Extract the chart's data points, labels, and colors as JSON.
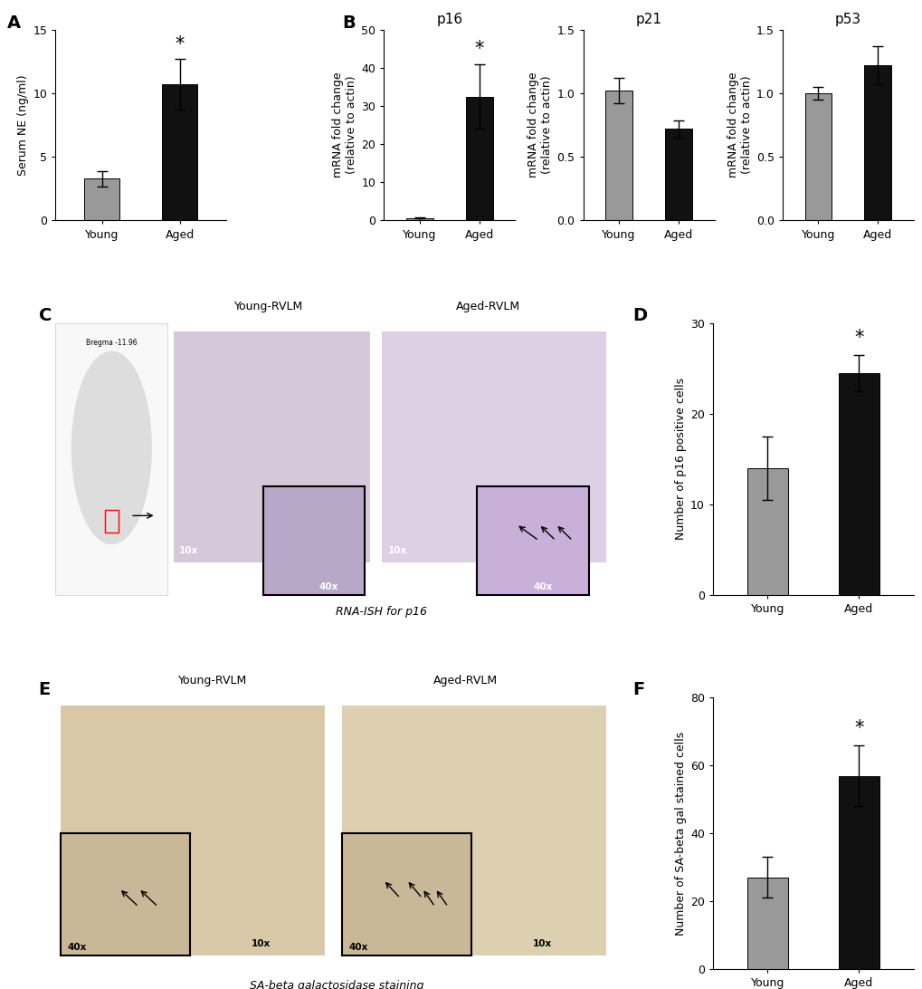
{
  "panel_A": {
    "ylabel": "Serum NE (ng/ml)",
    "categories": [
      "Young",
      "Aged"
    ],
    "values": [
      3.3,
      10.7
    ],
    "errors": [
      0.6,
      2.0
    ],
    "bar_colors": [
      "#999999",
      "#111111"
    ],
    "ylim": [
      0,
      15
    ],
    "yticks": [
      0,
      5,
      10,
      15
    ],
    "ytick_labels": [
      "0",
      "5",
      "10",
      "15"
    ],
    "sig_bar": 1,
    "label": "A"
  },
  "panel_B_p16": {
    "title": "p16",
    "ylabel": "mRNA fold change\n(relative to actin)",
    "categories": [
      "Young",
      "Aged"
    ],
    "values": [
      0.5,
      32.5
    ],
    "errors": [
      0.3,
      8.5
    ],
    "bar_colors": [
      "#999999",
      "#111111"
    ],
    "ylim": [
      0,
      50
    ],
    "yticks": [
      0,
      10,
      20,
      30,
      40,
      50
    ],
    "ytick_labels": [
      "0",
      "10",
      "20",
      "30",
      "40",
      "50"
    ],
    "sig_bar": 1,
    "label": "B"
  },
  "panel_B_p21": {
    "title": "p21",
    "ylabel": "mRNA fold change\n(relative to actin)",
    "categories": [
      "Young",
      "Aged"
    ],
    "values": [
      1.02,
      0.72
    ],
    "errors": [
      0.1,
      0.07
    ],
    "bar_colors": [
      "#999999",
      "#111111"
    ],
    "ylim": [
      0.0,
      1.5
    ],
    "yticks": [
      0.0,
      0.5,
      1.0,
      1.5
    ],
    "ytick_labels": [
      "0.0",
      "0.5",
      "1.0",
      "1.5"
    ],
    "sig_bar": null,
    "label": ""
  },
  "panel_B_p53": {
    "title": "p53",
    "ylabel": "mRNA fold change\n(relative to actin)",
    "categories": [
      "Young",
      "Aged"
    ],
    "values": [
      1.0,
      1.22
    ],
    "errors": [
      0.05,
      0.15
    ],
    "bar_colors": [
      "#999999",
      "#111111"
    ],
    "ylim": [
      0.0,
      1.5
    ],
    "yticks": [
      0.0,
      0.5,
      1.0,
      1.5
    ],
    "ytick_labels": [
      "0.0",
      "0.5",
      "1.0",
      "1.5"
    ],
    "sig_bar": null,
    "label": ""
  },
  "panel_D": {
    "ylabel": "Number of p16 positive cells",
    "categories": [
      "Young",
      "Aged"
    ],
    "values": [
      14.0,
      24.5
    ],
    "errors": [
      3.5,
      2.0
    ],
    "bar_colors": [
      "#999999",
      "#111111"
    ],
    "ylim": [
      0,
      30
    ],
    "yticks": [
      0,
      10,
      20,
      30
    ],
    "ytick_labels": [
      "0",
      "10",
      "20",
      "30"
    ],
    "sig_bar": 1,
    "label": "D"
  },
  "panel_F": {
    "ylabel": "Number of SA-beta gal stained cells",
    "categories": [
      "Young",
      "Aged"
    ],
    "values": [
      27.0,
      57.0
    ],
    "errors": [
      6.0,
      9.0
    ],
    "bar_colors": [
      "#999999",
      "#111111"
    ],
    "ylim": [
      0,
      80
    ],
    "yticks": [
      0,
      20,
      40,
      60,
      80
    ],
    "ytick_labels": [
      "0",
      "20",
      "40",
      "60",
      "80"
    ],
    "sig_bar": 1,
    "label": "F"
  },
  "panel_C_label": "C",
  "panel_C_young_title": "Young-RVLM",
  "panel_C_aged_title": "Aged-RVLM",
  "panel_C_subtitle": "RNA-ISH for p16",
  "panel_E_label": "E",
  "panel_E_young_title": "Young-RVLM",
  "panel_E_aged_title": "Aged-RVLM",
  "panel_E_subtitle": "SA-beta galactosidase staining",
  "panel_labels_fontsize": 14,
  "axis_label_fontsize": 9,
  "tick_fontsize": 9,
  "title_fontsize": 11,
  "bar_width": 0.45,
  "background_color": "#ffffff",
  "gray_bar": "#999999",
  "black_bar": "#111111"
}
